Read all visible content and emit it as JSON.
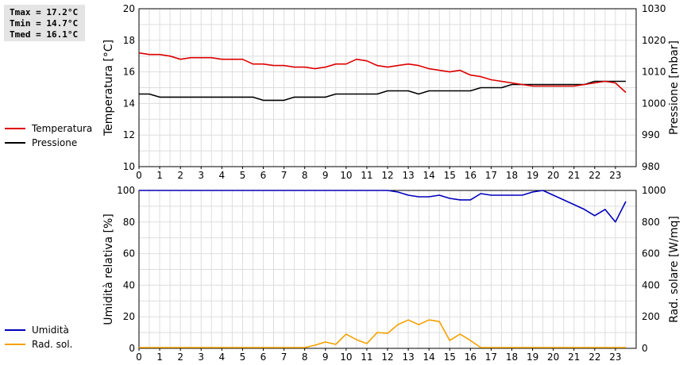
{
  "stats": {
    "tmax": "Tmax = 17.2°C",
    "tmin": "Tmin = 14.7°C",
    "tmed": "Tmed = 16.1°C"
  },
  "legend_top": [
    {
      "label": "Temperatura",
      "color": "#dd0000"
    },
    {
      "label": "Pressione",
      "color": "#000000"
    }
  ],
  "legend_bottom": [
    {
      "label": "Umidità",
      "color": "#0000bb"
    },
    {
      "label": "Rad. sol.",
      "color": "#f5a000"
    }
  ],
  "chart_data": [
    {
      "type": "line",
      "xlabel": "",
      "xlim": [
        0,
        24
      ],
      "xticks": [
        "0",
        "1",
        "2",
        "3",
        "4",
        "5",
        "6",
        "7",
        "8",
        "9",
        "10",
        "11",
        "12",
        "13",
        "14",
        "15",
        "16",
        "17",
        "18",
        "19",
        "20",
        "21",
        "22",
        "23"
      ],
      "ylabel": "Temperatura [°C]",
      "ylim": [
        10,
        20
      ],
      "yticks": [
        "10",
        "12",
        "14",
        "16",
        "18",
        "20"
      ],
      "y2label": "Pressione [mbar]",
      "y2lim": [
        980,
        1030
      ],
      "y2ticks": [
        "980",
        "990",
        "1000",
        "1010",
        "1020",
        "1030"
      ],
      "grid": true,
      "series": [
        {
          "name": "Temperatura",
          "axis": "left",
          "color": "#dd0000",
          "x": [
            0,
            0.5,
            1,
            1.5,
            2,
            2.5,
            3,
            3.5,
            4,
            4.5,
            5,
            5.5,
            6,
            6.5,
            7,
            7.5,
            8,
            8.5,
            9,
            9.5,
            10,
            10.5,
            11,
            11.5,
            12,
            12.5,
            13,
            13.5,
            14,
            14.5,
            15,
            15.5,
            16,
            16.5,
            17,
            17.5,
            18,
            18.5,
            19,
            19.5,
            20,
            20.5,
            21,
            21.5,
            22,
            22.5,
            23,
            23.5
          ],
          "y": [
            17.2,
            17.1,
            17.1,
            17.0,
            16.8,
            16.9,
            16.9,
            16.9,
            16.8,
            16.8,
            16.8,
            16.5,
            16.5,
            16.4,
            16.4,
            16.3,
            16.3,
            16.2,
            16.3,
            16.5,
            16.5,
            16.8,
            16.7,
            16.4,
            16.3,
            16.4,
            16.5,
            16.4,
            16.2,
            16.1,
            16.0,
            16.1,
            15.8,
            15.7,
            15.5,
            15.4,
            15.3,
            15.2,
            15.1,
            15.1,
            15.1,
            15.1,
            15.1,
            15.2,
            15.3,
            15.4,
            15.3,
            14.7
          ]
        },
        {
          "name": "Pressione",
          "axis": "right",
          "color": "#000000",
          "x": [
            0,
            0.5,
            1,
            1.5,
            2,
            2.5,
            3,
            3.5,
            4,
            4.5,
            5,
            5.5,
            6,
            6.5,
            7,
            7.5,
            8,
            8.5,
            9,
            9.5,
            10,
            10.5,
            11,
            11.5,
            12,
            12.5,
            13,
            13.5,
            14,
            14.5,
            15,
            15.5,
            16,
            16.5,
            17,
            17.5,
            18,
            18.5,
            19,
            19.5,
            20,
            20.5,
            21,
            21.5,
            22,
            22.5,
            23,
            23.5
          ],
          "y": [
            1003,
            1003,
            1002,
            1002,
            1002,
            1002,
            1002,
            1002,
            1002,
            1002,
            1002,
            1002,
            1001,
            1001,
            1001,
            1002,
            1002,
            1002,
            1002,
            1003,
            1003,
            1003,
            1003,
            1003,
            1004,
            1004,
            1004,
            1003,
            1004,
            1004,
            1004,
            1004,
            1004,
            1005,
            1005,
            1005,
            1006,
            1006,
            1006,
            1006,
            1006,
            1006,
            1006,
            1006,
            1007,
            1007,
            1007,
            1007
          ]
        }
      ]
    },
    {
      "type": "line",
      "xlabel": "",
      "xlim": [
        0,
        24
      ],
      "xticks": [
        "0",
        "1",
        "2",
        "3",
        "4",
        "5",
        "6",
        "7",
        "8",
        "9",
        "10",
        "11",
        "12",
        "13",
        "14",
        "15",
        "16",
        "17",
        "18",
        "19",
        "20",
        "21",
        "22",
        "23"
      ],
      "ylabel": "Umidità relativa [%]",
      "ylim": [
        0,
        100
      ],
      "yticks": [
        "0",
        "20",
        "40",
        "60",
        "80",
        "100"
      ],
      "y2label": "Rad. solare [W/mq]",
      "y2lim": [
        0,
        1000
      ],
      "y2ticks": [
        "0",
        "200",
        "400",
        "600",
        "800",
        "1000"
      ],
      "grid": true,
      "series": [
        {
          "name": "Umidità",
          "axis": "left",
          "color": "#0000bb",
          "x": [
            0,
            6,
            12,
            12.5,
            13,
            13.5,
            14,
            14.5,
            15,
            15.5,
            16,
            16.5,
            17,
            17.5,
            18,
            18.5,
            19,
            19.5,
            20,
            20.5,
            21,
            21.5,
            22,
            22.5,
            23,
            23.5
          ],
          "y": [
            100,
            100,
            100,
            99,
            97,
            96,
            96,
            97,
            95,
            94,
            94,
            98,
            97,
            97,
            97,
            97,
            99,
            100,
            97,
            94,
            91,
            88,
            84,
            88,
            80,
            93
          ]
        },
        {
          "name": "Rad. sol.",
          "axis": "right",
          "color": "#f5a000",
          "x": [
            0,
            1,
            2,
            3,
            4,
            5,
            6,
            7,
            8,
            8.5,
            9,
            9.5,
            10,
            10.5,
            11,
            11.5,
            12,
            12.5,
            13,
            13.5,
            14,
            14.5,
            15,
            15.5,
            16,
            16.5,
            17,
            18,
            19,
            20,
            21,
            22,
            23,
            23.5
          ],
          "y": [
            5,
            5,
            5,
            5,
            5,
            5,
            5,
            5,
            5,
            20,
            40,
            25,
            90,
            55,
            30,
            100,
            95,
            150,
            180,
            150,
            180,
            170,
            50,
            90,
            50,
            5,
            5,
            5,
            5,
            5,
            5,
            5,
            5,
            5
          ]
        }
      ]
    }
  ]
}
